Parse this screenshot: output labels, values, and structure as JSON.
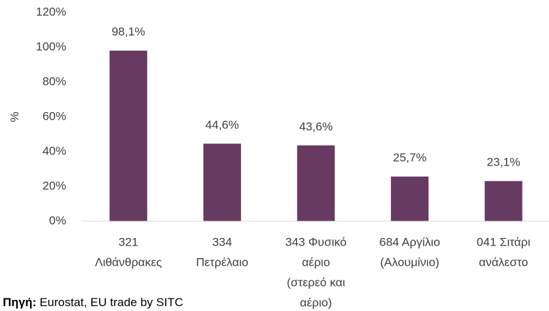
{
  "chart_data": {
    "type": "bar",
    "y_label": "%",
    "categories": [
      [
        "321",
        "Λιθάνθρακες"
      ],
      [
        "334",
        "Πετρέλαιο"
      ],
      [
        "343 Φυσικό",
        "αέριο",
        "(στερεό και",
        "αέριο)"
      ],
      [
        "684 Αργίλιο",
        "(Αλουμίνιο)"
      ],
      [
        "041 Σιτάρι",
        "ανάλεστο"
      ]
    ],
    "values": [
      98.1,
      44.6,
      43.6,
      25.7,
      23.1
    ],
    "value_labels": [
      "98,1%",
      "44,6%",
      "43,6%",
      "25,7%",
      "23,1%"
    ],
    "color": "#673a62",
    "ylim": [
      0,
      120
    ],
    "yticks": [
      {
        "value": 0,
        "label": "0%"
      },
      {
        "value": 20,
        "label": "20%"
      },
      {
        "value": 40,
        "label": "40%"
      },
      {
        "value": 60,
        "label": "60%"
      },
      {
        "value": 80,
        "label": "80%"
      },
      {
        "value": 100,
        "label": "100%"
      },
      {
        "value": 120,
        "label": "120%"
      }
    ],
    "grid": false
  },
  "source": {
    "label": "Πηγή:",
    "text": "Eurostat, EU trade by SITC"
  }
}
